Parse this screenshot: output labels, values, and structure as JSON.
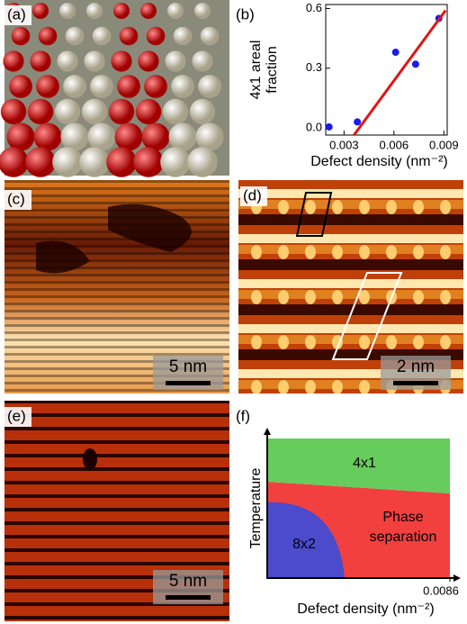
{
  "panel_labels": [
    "(a)",
    "(b)",
    "(c)",
    "(d)",
    "(e)",
    "(f)"
  ],
  "scale_bars": [
    "5 nm",
    "2 nm",
    "5 nm"
  ],
  "chart_data": [
    {
      "type": "scatter",
      "ylabel": [
        "4x1 areal",
        "fraction"
      ],
      "xlabel": "Defect density (nm⁻²)",
      "xlim": [
        0.0019,
        0.0092
      ],
      "xticks": [
        0.003,
        0.006,
        0.009
      ],
      "ylim": [
        -0.036,
        0.62
      ],
      "yticks": [
        {
          "value": 0,
          "label": "0.0"
        },
        {
          "value": 0.3,
          "label": "0.3"
        },
        {
          "value": 0.6,
          "label": "0.6"
        }
      ],
      "series": [
        {
          "style": "points",
          "color": "#1a1aee",
          "x": [
            0.0021,
            0.0038,
            0.0061,
            0.0073,
            0.0087
          ],
          "values": [
            0.005,
            0.03,
            0.38,
            0.32,
            0.55
          ]
        },
        {
          "style": "line",
          "color": "#e01515",
          "x": [
            0.0036,
            0.0091
          ],
          "values": [
            -0.036,
            0.59
          ]
        }
      ]
    },
    {
      "type": "phase",
      "ylabel": "Temperature",
      "xlabel": "Defect density (nm⁻²)",
      "xlim": [
        0,
        0.0086
      ],
      "xticks": [
        0.0086
      ],
      "regions": [
        {
          "label": [
            "Phase",
            "separation"
          ],
          "color": "#f2403f"
        },
        {
          "label": [
            "4x1"
          ],
          "color": "#66cc5c"
        },
        {
          "label": [
            "8x2"
          ],
          "color": "#4b4bcc"
        }
      ]
    }
  ]
}
